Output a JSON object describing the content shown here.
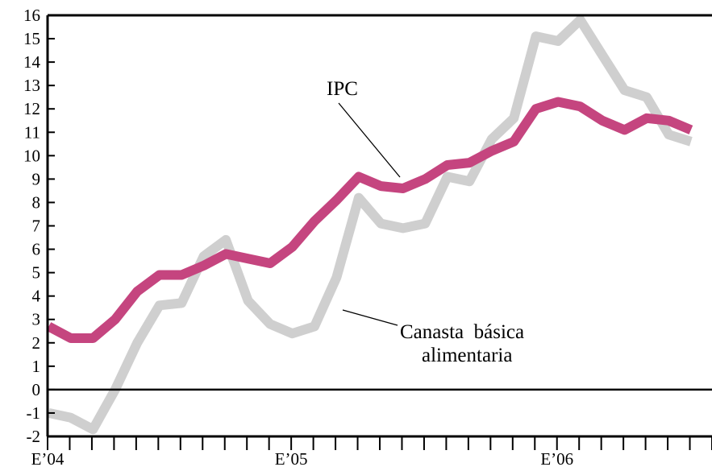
{
  "chart_data": {
    "type": "line",
    "title": "",
    "xlabel": "",
    "ylabel": "",
    "ylim": [
      -2,
      16
    ],
    "y_ticks": [
      -2,
      -1,
      0,
      1,
      2,
      3,
      4,
      5,
      6,
      7,
      8,
      9,
      10,
      11,
      12,
      13,
      14,
      15,
      16
    ],
    "x_tick_labels": [
      {
        "label": "E’04",
        "index": 0
      },
      {
        "label": "E’05",
        "index": 11
      },
      {
        "label": "E’06",
        "index": 23
      }
    ],
    "num_periods": 30,
    "grid": false,
    "series": [
      {
        "name": "IPC",
        "color": "#c5457f",
        "values": [
          2.7,
          2.2,
          2.2,
          3.0,
          4.2,
          4.9,
          4.9,
          5.3,
          5.8,
          5.6,
          5.4,
          6.1,
          7.2,
          8.1,
          9.1,
          8.7,
          8.6,
          9.0,
          9.6,
          9.7,
          10.2,
          10.6,
          12.0,
          12.3,
          12.1,
          11.5,
          11.1,
          11.6,
          11.5,
          11.1
        ]
      },
      {
        "name": "Canasta básica alimentaria",
        "color": "#cfcfcf",
        "values": [
          -1.0,
          -1.2,
          -1.7,
          0.0,
          2.0,
          3.6,
          3.7,
          5.7,
          6.4,
          3.8,
          2.8,
          2.4,
          2.7,
          4.8,
          8.2,
          7.1,
          6.9,
          7.1,
          9.1,
          8.9,
          10.7,
          11.6,
          15.1,
          14.9,
          15.8,
          14.3,
          12.8,
          12.5,
          10.9,
          10.6
        ]
      }
    ],
    "annotations": [
      {
        "text": "IPC",
        "series": 0
      },
      {
        "text": "Canasta  básica",
        "series": 1
      },
      {
        "text": "alimentaria",
        "series": 1
      }
    ]
  }
}
